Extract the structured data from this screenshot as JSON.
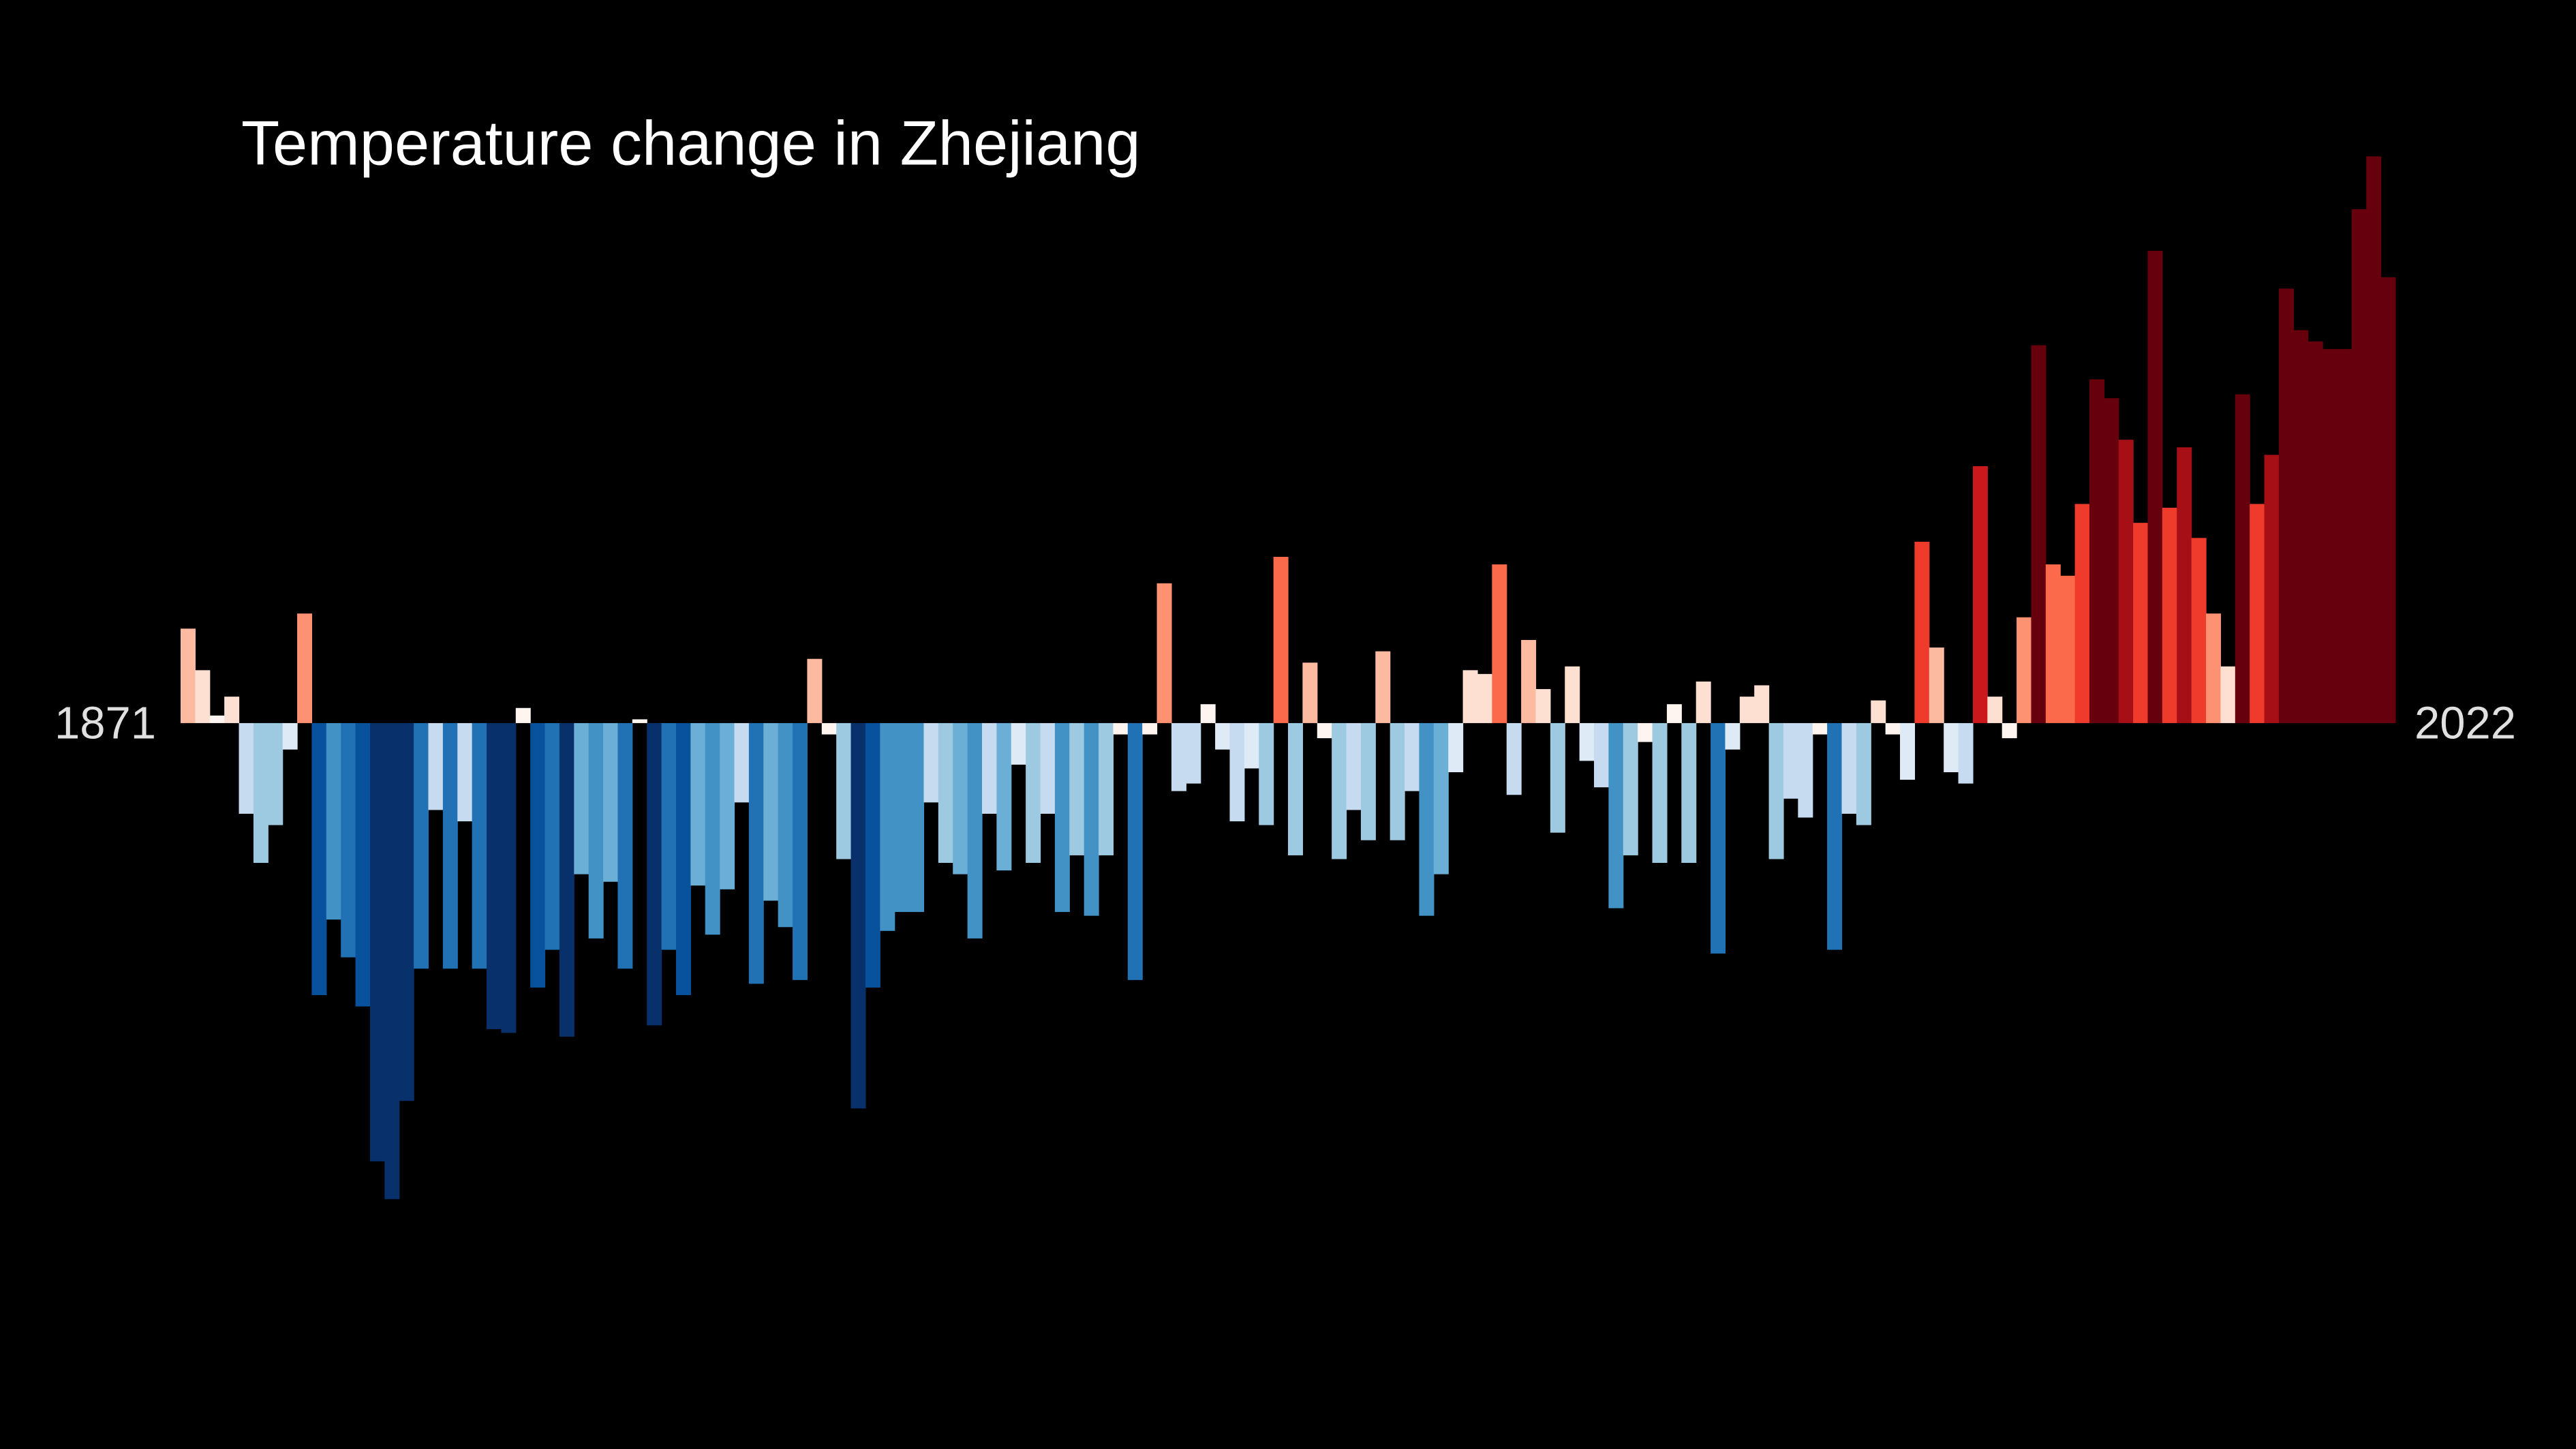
{
  "chart_data": {
    "type": "bar",
    "title": "Temperature change in Zhejiang",
    "categories": [
      "1871",
      null,
      null,
      null,
      null,
      null,
      null,
      null,
      null,
      null,
      null,
      null,
      null,
      null,
      null,
      null,
      null,
      null,
      null,
      null,
      null,
      null,
      null,
      null,
      null,
      null,
      null,
      null,
      null,
      null,
      null,
      null,
      null,
      null,
      null,
      null,
      null,
      null,
      null,
      null,
      null,
      null,
      null,
      null,
      null,
      null,
      null,
      null,
      null,
      null,
      null,
      null,
      null,
      null,
      null,
      null,
      null,
      null,
      null,
      null,
      null,
      null,
      null,
      null,
      null,
      null,
      null,
      null,
      null,
      null,
      null,
      null,
      null,
      null,
      null,
      null,
      null,
      null,
      null,
      null,
      null,
      null,
      null,
      null,
      null,
      null,
      null,
      null,
      null,
      null,
      null,
      null,
      null,
      null,
      null,
      null,
      null,
      null,
      null,
      null,
      null,
      null,
      null,
      null,
      null,
      null,
      null,
      null,
      null,
      null,
      null,
      null,
      null,
      null,
      null,
      null,
      null,
      null,
      null,
      null,
      null,
      null,
      null,
      null,
      null,
      null,
      null,
      null,
      null,
      null,
      null,
      null,
      null,
      null,
      null,
      null,
      null,
      null,
      null,
      null,
      null,
      null,
      null,
      null,
      null,
      null,
      null,
      null,
      null,
      null,
      null,
      "2022"
    ],
    "values": [
      0.25,
      0.14,
      0.02,
      0.07,
      -0.24,
      -0.37,
      -0.27,
      -0.07,
      0.29,
      -0.72,
      -0.52,
      -0.62,
      -0.75,
      -1.16,
      -1.26,
      -1.0,
      -0.65,
      -0.23,
      -0.65,
      -0.26,
      -0.65,
      -0.81,
      -0.82,
      0.04,
      -0.7,
      -0.6,
      -0.83,
      -0.4,
      -0.57,
      -0.42,
      -0.65,
      0.01,
      -0.8,
      -0.6,
      -0.72,
      -0.43,
      -0.56,
      -0.44,
      -0.21,
      -0.69,
      -0.47,
      -0.54,
      -0.68,
      0.17,
      -0.03,
      -0.36,
      -1.02,
      -0.7,
      -0.55,
      -0.5,
      -0.5,
      -0.21,
      -0.37,
      -0.4,
      -0.57,
      -0.24,
      -0.39,
      -0.11,
      -0.37,
      -0.24,
      -0.5,
      -0.35,
      -0.51,
      -0.35,
      -0.03,
      -0.68,
      -0.03,
      0.37,
      -0.18,
      -0.16,
      0.05,
      -0.07,
      -0.26,
      -0.12,
      -0.27,
      0.44,
      -0.35,
      0.16,
      -0.04,
      -0.36,
      -0.23,
      -0.31,
      0.19,
      -0.31,
      -0.18,
      -0.51,
      -0.4,
      -0.13,
      0.14,
      0.13,
      0.42,
      -0.19,
      0.22,
      0.09,
      -0.29,
      0.15,
      -0.1,
      -0.17,
      -0.49,
      -0.35,
      -0.05,
      -0.37,
      0.05,
      -0.37,
      0.11,
      -0.61,
      -0.07,
      0.07,
      0.1,
      -0.36,
      -0.2,
      -0.25,
      -0.03,
      -0.6,
      -0.24,
      -0.27,
      0.06,
      -0.03,
      -0.15,
      0.48,
      0.2,
      -0.13,
      -0.16,
      0.68,
      0.07,
      -0.04,
      0.28,
      1.0,
      0.42,
      0.39,
      0.58,
      0.91,
      0.86,
      0.75,
      0.53,
      1.25,
      0.57,
      0.73,
      0.49,
      0.29,
      0.15,
      0.87,
      0.58,
      0.71,
      1.15,
      1.04,
      1.01,
      0.99,
      0.99,
      1.36,
      1.5,
      1.18
    ],
    "ylim": [
      -1.4,
      1.6
    ],
    "color_scale": [
      "#08306b",
      "#08519c",
      "#2171b5",
      "#4292c6",
      "#6baed6",
      "#9ecae1",
      "#c6dbef",
      "#deebf7",
      "#fff5f0",
      "#fee0d2",
      "#fcbba1",
      "#fc9272",
      "#fb6a4a",
      "#ef3b2c",
      "#cb181d",
      "#a50f15",
      "#67000d"
    ],
    "color_range": [
      -0.85,
      0.85
    ]
  }
}
